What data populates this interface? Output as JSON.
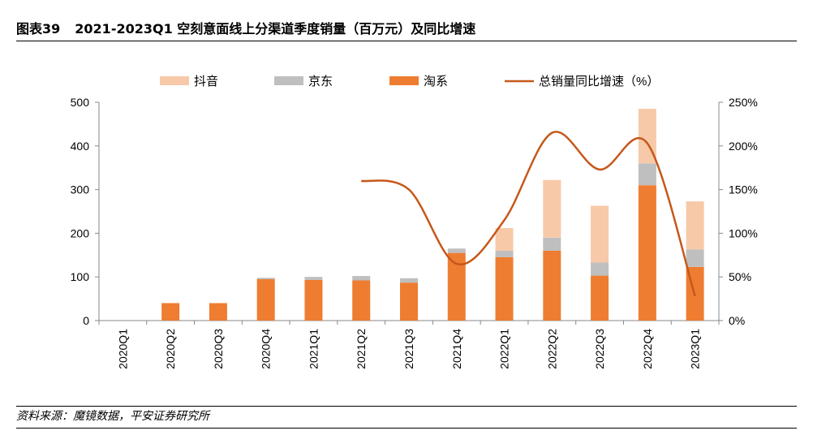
{
  "header": {
    "figure_no": "图表39",
    "title": "2021-2023Q1 空刻意面线上分渠道季度销量（百万元）及同比增速"
  },
  "footer": {
    "source": "资料来源：魔镜数据，平安证券研究所"
  },
  "colors": {
    "douyin": "#F8C9A8",
    "jd": "#BFBFBF",
    "tmall": "#EE7D31",
    "growth_line": "#C5581A"
  },
  "chart_data": {
    "type": "bar",
    "stacked": true,
    "categories": [
      "2020Q1",
      "2020Q2",
      "2020Q3",
      "2020Q4",
      "2021Q1",
      "2021Q2",
      "2021Q3",
      "2021Q4",
      "2022Q1",
      "2022Q2",
      "2022Q3",
      "2022Q4",
      "2023Q1"
    ],
    "series": [
      {
        "name": "淘系",
        "key": "tmall",
        "values": [
          0,
          40,
          40,
          95,
          93,
          92,
          87,
          155,
          145,
          160,
          103,
          310,
          123
        ]
      },
      {
        "name": "京东",
        "key": "jd",
        "values": [
          0,
          0,
          0,
          3,
          7,
          10,
          10,
          10,
          15,
          30,
          30,
          50,
          40
        ]
      },
      {
        "name": "抖音",
        "key": "douyin",
        "values": [
          0,
          0,
          0,
          0,
          0,
          0,
          0,
          0,
          52,
          132,
          130,
          125,
          110
        ]
      }
    ],
    "line_series": {
      "name": "总销量同比增速（%）",
      "axis": "right",
      "values": [
        null,
        null,
        null,
        null,
        null,
        160,
        150,
        65,
        115,
        215,
        173,
        203,
        28
      ]
    },
    "ylim": [
      0,
      500
    ],
    "yticks": [
      "0",
      "100",
      "200",
      "300",
      "400",
      "500"
    ],
    "y2lim": [
      0,
      250
    ],
    "y2ticks": [
      "0%",
      "50%",
      "100%",
      "150%",
      "200%",
      "250%"
    ],
    "legend_position": "top",
    "grid": false
  }
}
